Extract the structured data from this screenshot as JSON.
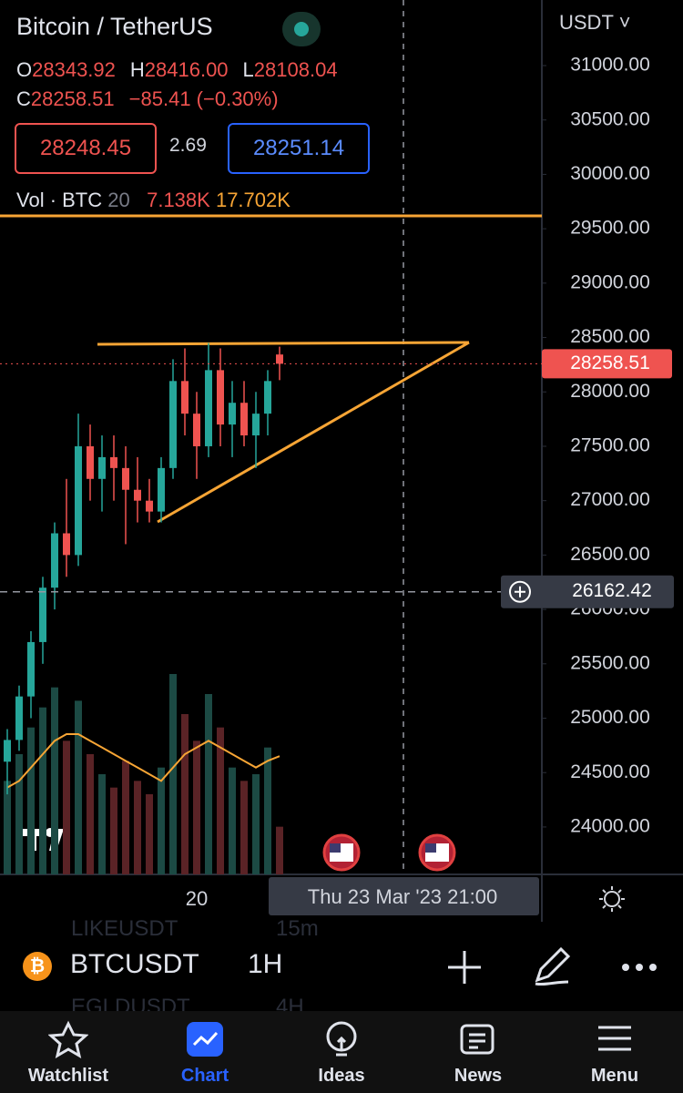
{
  "header": {
    "title": "Bitcoin / TetherUS",
    "ohlc": [
      {
        "key": "O",
        "value": "28343.92"
      },
      {
        "key": "H",
        "value": "28416.00"
      },
      {
        "key": "L",
        "value": "28108.04"
      },
      {
        "key": "C",
        "value": "28258.51"
      }
    ],
    "change": "−85.41 (−0.30%)",
    "bid": "28248.45",
    "spread": "2.69",
    "ask": "28251.14",
    "volume_legend": {
      "label": "Vol · BTC",
      "length": "20",
      "volume": "7.138K",
      "ma": "17.702K"
    }
  },
  "chart_data": {
    "type": "candlestick",
    "currency": "USDT",
    "categories": [
      null,
      null,
      null,
      null,
      null,
      null,
      null,
      null,
      null,
      null,
      null,
      null,
      null,
      null,
      null,
      null,
      "20",
      null,
      null,
      null,
      null,
      null,
      null,
      null
    ],
    "open": [
      24600,
      24800,
      25200,
      25700,
      26200,
      26700,
      26500,
      27500,
      27200,
      27400,
      27300,
      27100,
      27000,
      26900,
      27300,
      28100,
      27800,
      27500,
      28200,
      27700,
      27900,
      27600,
      27800,
      28343.92
    ],
    "high": [
      24900,
      25300,
      25800,
      26300,
      26800,
      27200,
      27800,
      27700,
      27600,
      27600,
      27500,
      27400,
      27200,
      27400,
      28300,
      28400,
      28000,
      28450,
      28400,
      28100,
      28100,
      28000,
      28200,
      28416.0
    ],
    "low": [
      24300,
      24700,
      25000,
      25500,
      26000,
      26300,
      26400,
      27000,
      26900,
      27000,
      26600,
      26800,
      26800,
      26800,
      27200,
      27600,
      27200,
      27400,
      27500,
      27400,
      27500,
      27300,
      27600,
      28108.04
    ],
    "close": [
      24800,
      25200,
      25700,
      26200,
      26700,
      26500,
      27500,
      27200,
      27400,
      27300,
      27100,
      27000,
      26900,
      27300,
      28100,
      27800,
      27500,
      28200,
      27700,
      27900,
      27600,
      27800,
      28100,
      28258.51
    ],
    "volume": [
      14,
      18,
      22,
      25,
      28,
      20,
      26,
      18,
      15,
      13,
      17,
      14,
      12,
      16,
      30,
      24,
      20,
      27,
      22,
      16,
      14,
      15,
      19,
      7.138
    ],
    "volume_ma": [
      13,
      14,
      16,
      18,
      20,
      21,
      21,
      20,
      19,
      18,
      17,
      16,
      15,
      14,
      16,
      18,
      19,
      20,
      19,
      18,
      17,
      16,
      17,
      17.702
    ],
    "ylim": [
      23564,
      31603
    ],
    "yticks": [
      {
        "value": 31000,
        "label": "31000.00"
      },
      {
        "value": 30500,
        "label": "30500.00"
      },
      {
        "value": 30000,
        "label": "30000.00"
      },
      {
        "value": 29500,
        "label": "29500.00"
      },
      {
        "value": 29000,
        "label": "29000.00"
      },
      {
        "value": 28500,
        "label": "28500.00"
      },
      {
        "value": 28000,
        "label": "28000.00"
      },
      {
        "value": 27500,
        "label": "27500.00"
      },
      {
        "value": 27000,
        "label": "27000.00"
      },
      {
        "value": 26500,
        "label": "26500.00"
      },
      {
        "value": 26000,
        "label": "26000.00"
      },
      {
        "value": 25500,
        "label": "25500.00"
      },
      {
        "value": 25000,
        "label": "25000.00"
      },
      {
        "value": 24500,
        "label": "24500.00"
      },
      {
        "value": 24000,
        "label": "24000.00"
      }
    ],
    "last_price": {
      "value": 28258.51,
      "label": "28258.51"
    },
    "crosshair_price": {
      "value": 26162.42,
      "label": "26162.42"
    },
    "crosshair_time": "Thu 23 Mar '23   21:00"
  },
  "symbol_bar": {
    "symbol": "BTCUSDT",
    "interval": "1H",
    "ghost_above": [
      "LIKEUSDT",
      "15m"
    ],
    "ghost_below": [
      "EGLDUSDT",
      "4H"
    ]
  },
  "nav": [
    "Watchlist",
    "Chart",
    "Ideas",
    "News",
    "Menu"
  ]
}
